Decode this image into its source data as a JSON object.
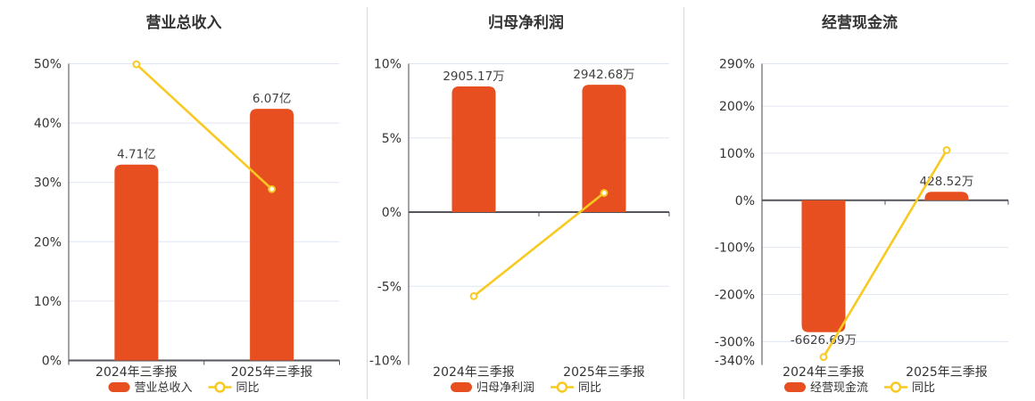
{
  "page": {
    "background": "#ffffff"
  },
  "palette": {
    "bar_color": "#e74e20",
    "line_color": "#f8c920",
    "grid_color": "#e0e6f0",
    "axis_color": "#6e7079",
    "zero_line_color": "#54565c",
    "text_color": "#333333",
    "value_label_color": "#404040",
    "divider_color": "#d9d9d9",
    "marker_fill": "#ffffff"
  },
  "chart_data": [
    {
      "type": "bar+line",
      "id": "revenue",
      "title": "营业总收入",
      "categories": [
        "2024年三季报",
        "2025年三季报"
      ],
      "bar_series": {
        "name": "营业总收入",
        "unit": "亿",
        "values": [
          4.71,
          6.07
        ],
        "labels": [
          "4.71亿",
          "6.07亿"
        ]
      },
      "line_series": {
        "name": "同比",
        "unit": "%",
        "values": [
          49.9,
          28.87
        ]
      },
      "y_axis": {
        "unit": "%",
        "min": 0,
        "max": 50,
        "ticks": [
          50,
          40,
          30,
          20,
          10,
          0
        ],
        "tick_labels": [
          "50%",
          "40%",
          "30%",
          "20%",
          "10%",
          "0%"
        ]
      },
      "layout": {
        "bar_display_pct": [
          33.0,
          42.4
        ],
        "grid": true,
        "legend_position": "bottom"
      }
    },
    {
      "type": "bar+line",
      "id": "net-profit",
      "title": "归母净利润",
      "categories": [
        "2024年三季报",
        "2025年三季报"
      ],
      "bar_series": {
        "name": "归母净利润",
        "unit": "万",
        "values": [
          2905.17,
          2942.68
        ],
        "labels": [
          "2905.17万",
          "2942.68万"
        ]
      },
      "line_series": {
        "name": "同比",
        "unit": "%",
        "values": [
          -5.67,
          1.29
        ]
      },
      "y_axis": {
        "unit": "%",
        "min": -10,
        "max": 10,
        "ticks": [
          10,
          5,
          0,
          -5,
          -10
        ],
        "tick_labels": [
          "10%",
          "5%",
          "0%",
          "-5%",
          "-10%"
        ]
      },
      "layout": {
        "bar_display_pct": [
          8.47,
          8.58
        ],
        "grid": true,
        "legend_position": "bottom"
      }
    },
    {
      "type": "bar+line",
      "id": "operating-cash-flow",
      "title": "经营现金流",
      "categories": [
        "2024年三季报",
        "2025年三季报"
      ],
      "bar_series": {
        "name": "经营现金流",
        "unit": "万",
        "values": [
          -6626.69,
          428.52
        ],
        "labels": [
          "-6626.69万",
          "428.52万"
        ]
      },
      "line_series": {
        "name": "同比",
        "unit": "%",
        "values": [
          -332.8,
          106.47
        ]
      },
      "y_axis": {
        "unit": "%",
        "min": -340,
        "max": 290,
        "ticks": [
          290,
          200,
          100,
          0,
          -100,
          -200,
          -300,
          -340
        ],
        "tick_labels": [
          "290%",
          "200%",
          "100%",
          "0%",
          "-100%",
          "-200%",
          "-300%",
          "-340%"
        ]
      },
      "layout": {
        "bar_display_pct": [
          -280,
          18.1
        ],
        "grid": true,
        "legend_position": "bottom"
      }
    }
  ]
}
